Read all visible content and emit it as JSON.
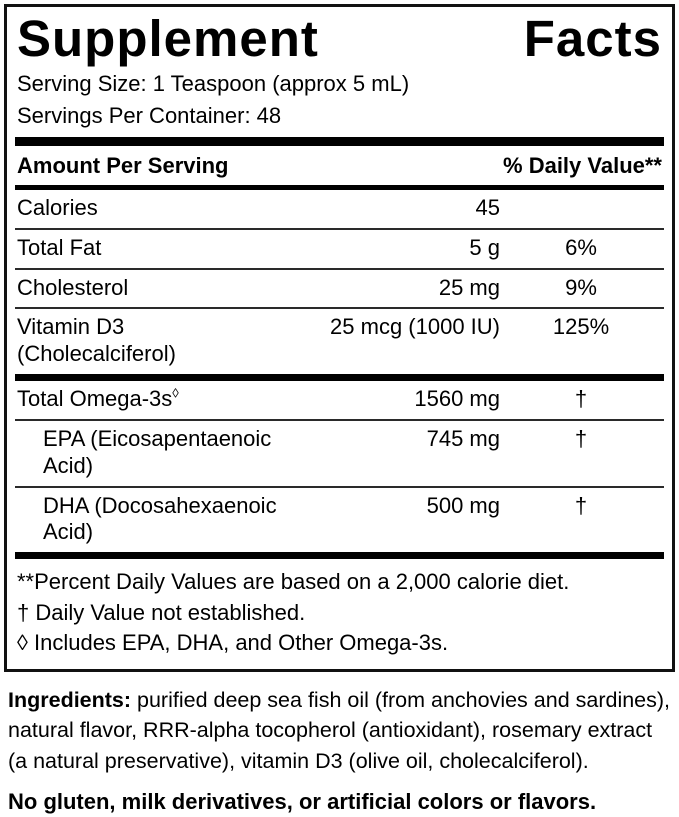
{
  "panel": {
    "title_words": [
      "Supplement",
      "Facts"
    ],
    "serving_size": "Serving Size: 1 Teaspoon (approx 5 mL)",
    "servings_per_container": "Servings Per Container: 48",
    "columns": {
      "amount_header": "Amount Per Serving",
      "dv_header": "% Daily Value**"
    },
    "rows": [
      {
        "name": "Calories",
        "amount": "45",
        "dv": ""
      },
      {
        "name": "Total Fat",
        "amount": "5 g",
        "dv": "6%"
      },
      {
        "name": "Cholesterol",
        "amount": "25 mg",
        "dv": "9%"
      },
      {
        "name": "Vitamin D3",
        "name_line2": "(Cholecalciferol)",
        "amount": "25 mcg (1000 IU)",
        "dv": "125%"
      }
    ],
    "omega_rows": [
      {
        "name": "Total Omega-3s",
        "sup": "◊",
        "amount": "1560 mg",
        "dv": "†"
      },
      {
        "name": "EPA (Eicosapentaenoic Acid)",
        "amount": "745 mg",
        "dv": "†"
      },
      {
        "name": "DHA (Docosahexaenoic Acid)",
        "amount": "500 mg",
        "dv": "†"
      }
    ],
    "footnotes": [
      "**Percent Daily Values are based on a 2,000 calorie diet.",
      "† Daily Value not established.",
      "◊ Includes EPA, DHA, and Other Omega-3s."
    ]
  },
  "ingredients": {
    "label": "Ingredients:",
    "text": " purified deep sea fish oil (from anchovies and sardines), natural flavor, RRR-alpha tocopherol (antioxidant), rosemary extract (a natural preservative), vitamin D3 (olive oil, cholecalciferol)."
  },
  "allergen": "No gluten, milk derivatives, or artificial colors or flavors.",
  "colors": {
    "text": "#000000",
    "background": "#ffffff",
    "rule": "#000000"
  }
}
